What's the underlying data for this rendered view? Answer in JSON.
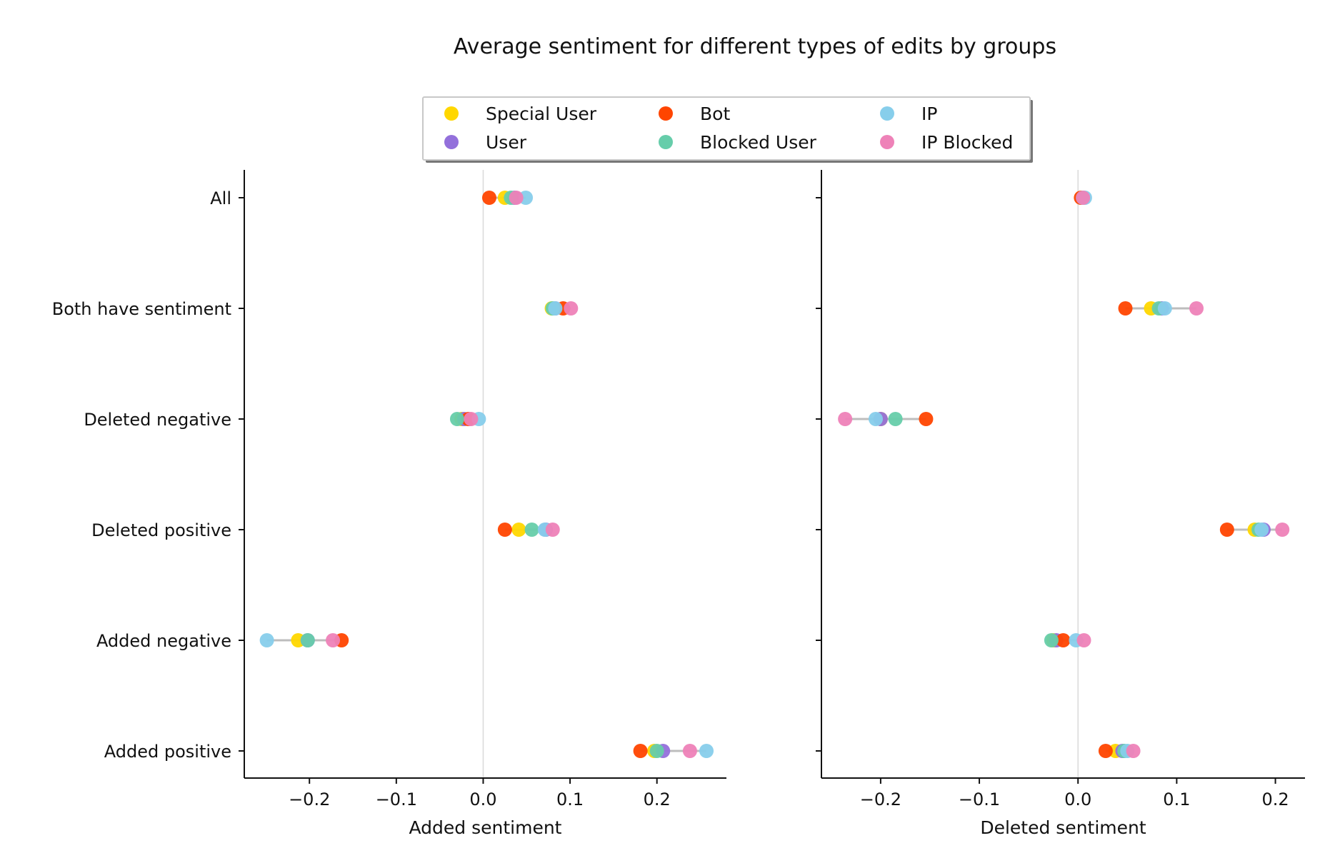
{
  "chart_data": {
    "type": "dot-plot",
    "title": "Average sentiment for different types of edits by groups",
    "categories": [
      "All",
      "Both have sentiment",
      "Deleted negative",
      "Deleted positive",
      "Added negative",
      "Added positive"
    ],
    "legend": {
      "placement": "top-center",
      "entries": [
        {
          "name": "Special User",
          "color": "#FFD700"
        },
        {
          "name": "User",
          "color": "#9370DB"
        },
        {
          "name": "Bot",
          "color": "#FF4500"
        },
        {
          "name": "Blocked User",
          "color": "#66CDAA"
        },
        {
          "name": "IP",
          "color": "#87CEEB"
        },
        {
          "name": "IP Blocked",
          "color": "#EE82B8"
        }
      ]
    },
    "panels": [
      {
        "xlabel": "Added sentiment",
        "xlim": [
          -0.275,
          0.28
        ],
        "xticks": [
          -0.2,
          -0.1,
          0.0,
          0.1,
          0.2
        ],
        "xtick_labels": [
          "−0.2",
          "−0.1",
          "0.0",
          "0.1",
          "0.2"
        ],
        "reference_line": 0.0,
        "series": [
          {
            "name": "Special User",
            "values": [
              0.025,
              0.079,
              -0.025,
              0.041,
              -0.213,
              0.197
            ]
          },
          {
            "name": "User",
            "values": [
              0.036,
              0.083,
              -0.022,
              0.072,
              -0.202,
              0.207
            ]
          },
          {
            "name": "Bot",
            "values": [
              0.007,
              0.092,
              -0.017,
              0.025,
              -0.163,
              0.181
            ]
          },
          {
            "name": "Blocked User",
            "values": [
              0.032,
              0.08,
              -0.03,
              0.056,
              -0.202,
              0.2
            ]
          },
          {
            "name": "IP",
            "values": [
              0.049,
              0.083,
              -0.005,
              0.071,
              -0.249,
              0.257
            ]
          },
          {
            "name": "IP Blocked",
            "values": [
              0.038,
              0.101,
              -0.014,
              0.08,
              -0.173,
              0.238
            ]
          }
        ]
      },
      {
        "xlabel": "Deleted sentiment",
        "xlim": [
          -0.26,
          0.23
        ],
        "xticks": [
          -0.2,
          -0.1,
          0.0,
          0.1,
          0.2
        ],
        "xtick_labels": [
          "−0.2",
          "−0.1",
          "0.0",
          "0.1",
          "0.2"
        ],
        "reference_line": 0.0,
        "series": [
          {
            "name": "Special User",
            "values": [
              0.004,
              0.074,
              -0.2,
              0.179,
              -0.025,
              0.038
            ]
          },
          {
            "name": "User",
            "values": [
              0.005,
              0.085,
              -0.2,
              0.188,
              -0.022,
              0.045
            ]
          },
          {
            "name": "Bot",
            "values": [
              0.003,
              0.048,
              -0.154,
              0.151,
              -0.015,
              0.028
            ]
          },
          {
            "name": "Blocked User",
            "values": [
              0.005,
              0.082,
              -0.185,
              0.183,
              -0.027,
              0.047
            ]
          },
          {
            "name": "IP",
            "values": [
              0.007,
              0.088,
              -0.205,
              0.186,
              -0.002,
              0.05
            ]
          },
          {
            "name": "IP Blocked",
            "values": [
              0.005,
              0.12,
              -0.236,
              0.207,
              0.006,
              0.056
            ]
          }
        ]
      }
    ]
  }
}
